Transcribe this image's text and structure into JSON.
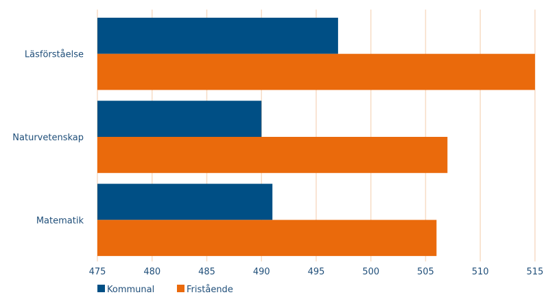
{
  "chart_data": {
    "type": "bar",
    "orientation": "horizontal",
    "categories": [
      "Läsförståelse",
      "Naturvetenskap",
      "Matematik"
    ],
    "series": [
      {
        "name": "Kommunal",
        "values": [
          497,
          490,
          491
        ],
        "color": "#004f85"
      },
      {
        "name": "Fristående",
        "values": [
          515,
          507,
          506
        ],
        "color": "#ea6a0c"
      }
    ],
    "xlim": [
      475,
      515
    ],
    "xticks": [
      475,
      480,
      485,
      490,
      495,
      500,
      505,
      510,
      515
    ],
    "grid": true,
    "grid_color": "#f7dcc5",
    "legend_position": "bottom-left",
    "title": "",
    "xlabel": "",
    "ylabel": ""
  }
}
